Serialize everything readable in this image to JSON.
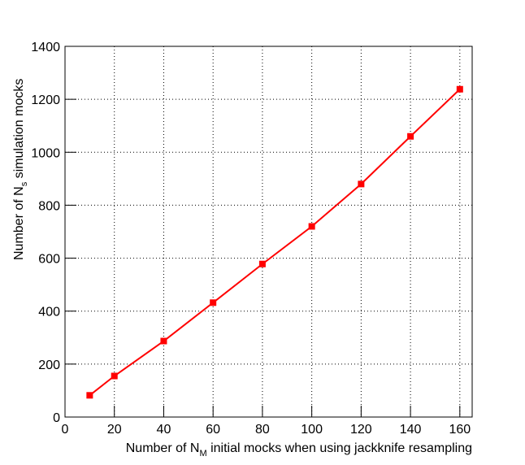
{
  "chart_data": {
    "type": "line",
    "x_label": [
      "Number of N",
      "M",
      " initial mocks when using jackknife resampling"
    ],
    "y_label": [
      "Number of N",
      "s",
      " simulation mocks"
    ],
    "x": [
      10,
      20,
      40,
      60,
      80,
      100,
      120,
      140,
      160
    ],
    "series": [
      {
        "color": "#ff0000",
        "values": [
          82,
          155,
          287,
          432,
          578,
          720,
          880,
          1060,
          1238
        ]
      }
    ],
    "xlim": [
      0,
      165
    ],
    "xticks": [
      0,
      20,
      40,
      60,
      80,
      100,
      120,
      140,
      160
    ],
    "ylim": [
      0,
      1400
    ],
    "yticks": [
      0,
      200,
      400,
      600,
      800,
      1000,
      1200,
      1400
    ],
    "grid": true
  }
}
